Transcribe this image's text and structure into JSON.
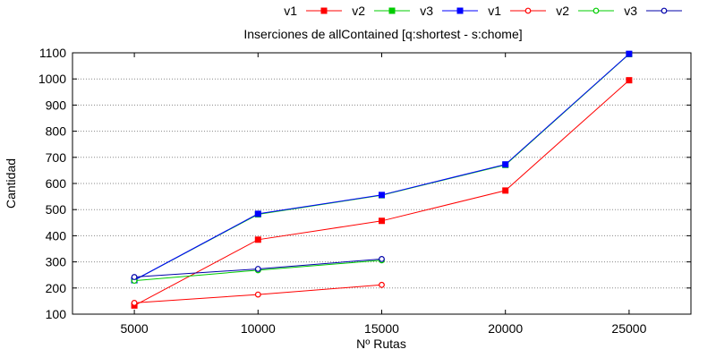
{
  "chart_data": {
    "type": "line",
    "title": "Inserciones de allContained [q:shortest - s:chome]",
    "xlabel": "Nº Rutas",
    "ylabel": "Cantidad",
    "x_ticks": [
      5000,
      10000,
      15000,
      20000,
      25000
    ],
    "xlim": [
      2500,
      27500
    ],
    "ylim": [
      100,
      1100
    ],
    "y_ticks": [
      100,
      200,
      300,
      400,
      500,
      600,
      700,
      800,
      900,
      1000,
      1100
    ],
    "grid": "horizontal dotted",
    "legend_position": "top-right",
    "series": [
      {
        "name": "v1",
        "color": "#ff0000",
        "marker": "filled-square",
        "x": [
          5000,
          10000,
          15000,
          20000,
          25000
        ],
        "values": [
          133,
          385,
          457,
          573,
          995
        ]
      },
      {
        "name": "v2",
        "color": "#00cc00",
        "marker": "filled-square",
        "x": [
          5000,
          10000,
          15000,
          20000,
          25000
        ],
        "values": [
          230,
          482,
          555,
          671,
          1095
        ]
      },
      {
        "name": "v3",
        "color": "#0000ff",
        "marker": "filled-square",
        "x": [
          5000,
          10000,
          15000,
          20000,
          25000
        ],
        "values": [
          230,
          484,
          556,
          673,
          1096
        ]
      },
      {
        "name": "v1",
        "color": "#ff0000",
        "marker": "open-circle",
        "x": [
          5000,
          10000,
          15000
        ],
        "values": [
          143,
          175,
          212
        ]
      },
      {
        "name": "v2",
        "color": "#00cc00",
        "marker": "open-circle",
        "x": [
          5000,
          10000,
          15000
        ],
        "values": [
          228,
          268,
          306
        ]
      },
      {
        "name": "v3",
        "color": "#0000aa",
        "marker": "open-circle",
        "x": [
          5000,
          10000,
          15000
        ],
        "values": [
          242,
          273,
          311
        ]
      }
    ]
  }
}
